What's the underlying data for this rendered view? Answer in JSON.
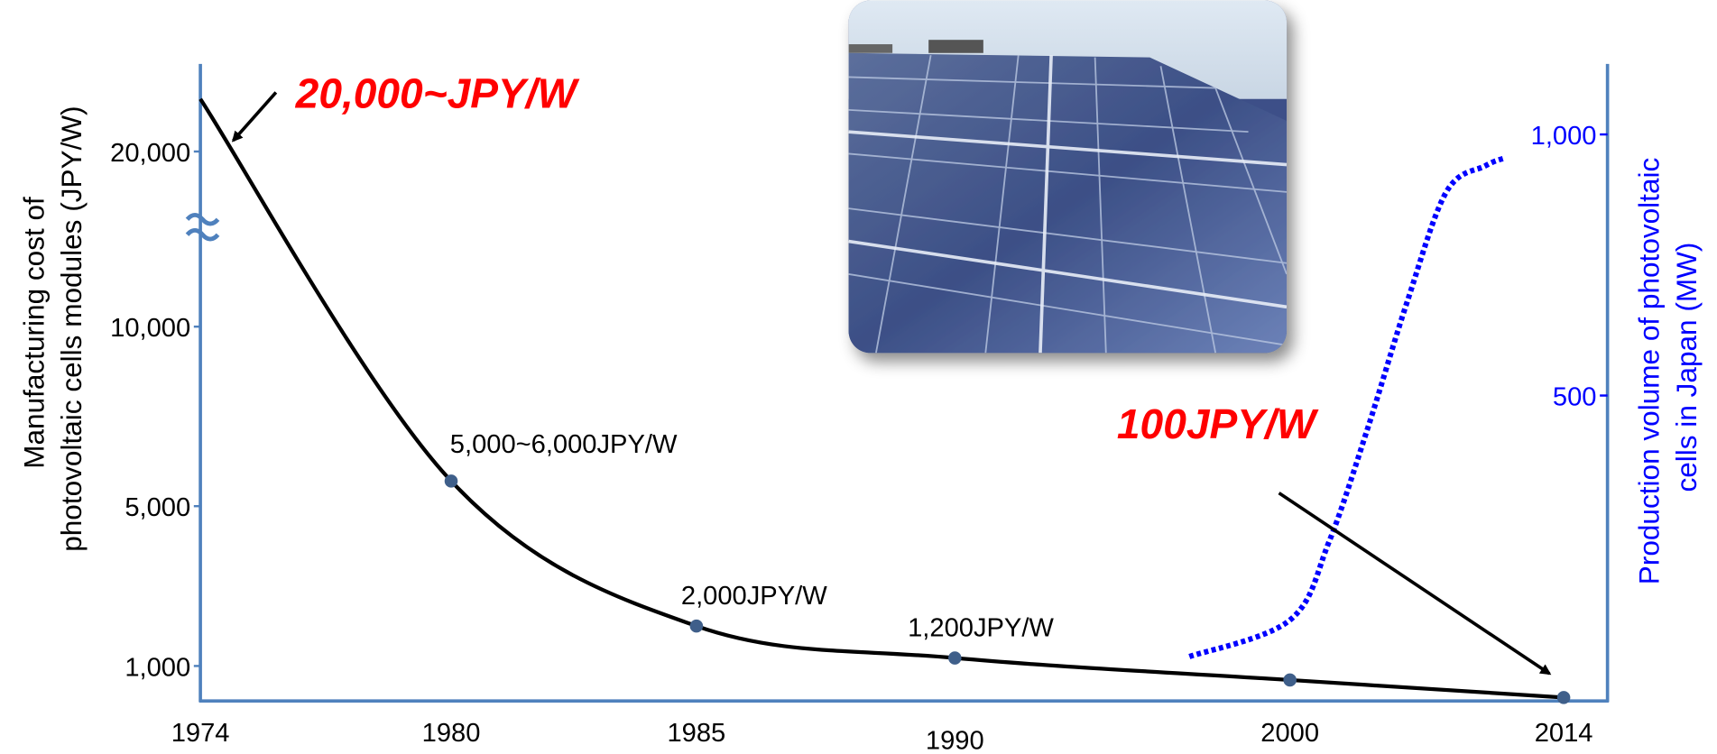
{
  "chart_data": {
    "type": "line",
    "ylabel": [
      "Manufacturing cost of",
      "photovoltaic cells modules (JPY/W)"
    ],
    "y2label": [
      "Production volume of photovoltaic",
      "cells in Japan (MW)"
    ],
    "categories": [
      "1974",
      "1980",
      "1985",
      "1990",
      "2000",
      "2014"
    ],
    "ylim": [
      0,
      25000
    ],
    "yticks": [
      {
        "value": 1000,
        "label": "1,000"
      },
      {
        "value": 5000,
        "label": "5,000"
      },
      {
        "value": 10000,
        "label": "10,000"
      },
      {
        "value": 20000,
        "label": "20,000"
      }
    ],
    "y2lim": [
      -85,
      1135
    ],
    "y2ticks": [
      500,
      {
        "value": 1000,
        "label": "1,000"
      }
    ],
    "series": [
      {
        "color": "#000000",
        "values": [
          23000,
          5700,
          2000,
          1200,
          600,
          100
        ],
        "value_labels": [
          null,
          "5,000~6,000JPY/W",
          "2,000JPY/W",
          "1,200JPY/W",
          null,
          null
        ]
      },
      {
        "color": "#0000ff",
        "axis": "y2",
        "x": [
          1997,
          2000,
          2002,
          2004,
          2006,
          2008,
          2010,
          2011
        ],
        "values": [
          0,
          70,
          220,
          440,
          680,
          890,
          940,
          955
        ]
      }
    ],
    "annotations": [
      {
        "text": "20,000~JPY/W",
        "color": "#ff0000",
        "target": 0
      },
      {
        "text": "100JPY/W",
        "color": "#ff0000",
        "target": 5
      }
    ]
  }
}
